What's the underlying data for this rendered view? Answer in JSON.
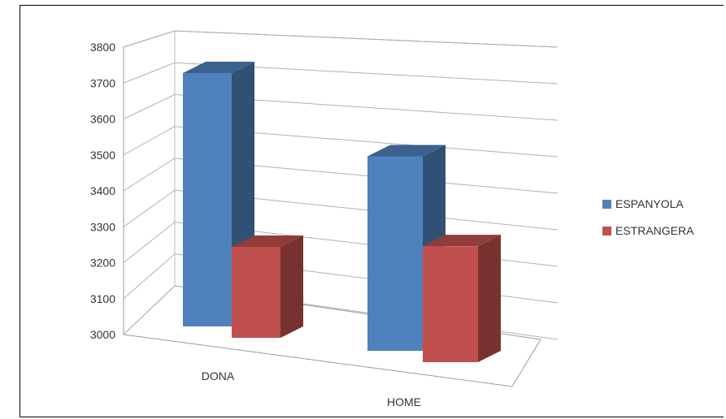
{
  "chart_data": {
    "type": "bar",
    "categories": [
      "DONA",
      "HOME"
    ],
    "series": [
      {
        "name": "ESPANYOLA",
        "values": [
          3710,
          3545
        ],
        "color": "#4F81BD"
      },
      {
        "name": "ESTRANGERA",
        "values": [
          3255,
          3325
        ],
        "color": "#C0504D"
      }
    ],
    "y_ticks": [
      "3000",
      "3100",
      "3200",
      "3300",
      "3400",
      "3500",
      "3600",
      "3700",
      "3800"
    ],
    "ylim": [
      3000,
      3800
    ],
    "grid": true,
    "legend_position": "right",
    "style": "3d-clustered-column"
  }
}
